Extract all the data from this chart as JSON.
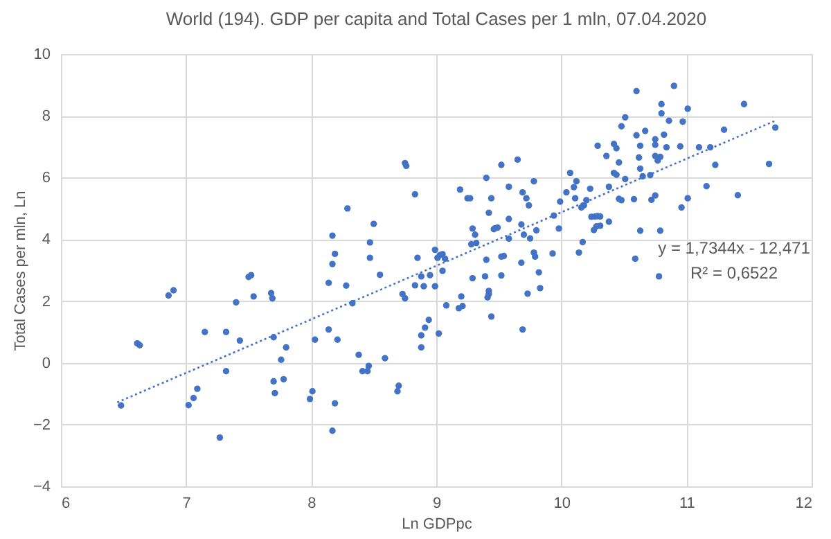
{
  "chart_data": {
    "type": "scatter",
    "title": "World (194). GDP per capita and Total Cases per 1 mln, 07.04.2020",
    "xlabel": "Ln GDPpc",
    "ylabel": "Total Cases per mln, Ln",
    "xlim": [
      6,
      12
    ],
    "xticks": [
      6,
      7,
      8,
      9,
      10,
      11,
      12
    ],
    "ylim": [
      -4,
      10
    ],
    "yticks": [
      -4,
      -2,
      0,
      2,
      4,
      6,
      8,
      10
    ],
    "grid": true,
    "annotations": [
      "y = 1,7344x - 12,471",
      "R² = 0,6522"
    ],
    "series": [
      {
        "color": "#4472c4",
        "marker": "circle",
        "x": [
          6.48,
          6.61,
          6.63,
          6.86,
          6.9,
          7.15,
          7.32,
          7.43,
          7.4,
          7.5,
          7.52,
          7.54,
          7.68,
          7.69,
          7.7,
          7.8,
          7.76,
          7.78,
          8.03,
          7.32,
          7.09,
          7.06,
          7.02,
          7.27,
          7.7,
          7.71,
          8.01,
          7.99,
          8.29,
          8.5,
          8.17,
          8.47,
          8.19,
          8.17,
          8.47,
          8.55,
          8.14,
          8.28,
          8.33,
          8.85,
          8.99,
          9.01,
          9.03,
          9.05,
          9.07,
          9.05,
          8.88,
          8.95,
          8.83,
          8.9,
          8.99,
          8.73,
          8.75,
          9.08,
          9.2,
          9.18,
          9.21,
          9.29,
          9.31,
          9.28,
          9.32,
          9.42,
          9.46,
          9.47,
          9.49,
          9.58,
          9.4,
          9.39,
          9.52,
          9.54,
          9.52,
          9.42,
          9.42,
          9.41,
          9.44,
          8.14,
          8.21,
          8.38,
          8.59,
          8.41,
          8.45,
          8.46,
          8.7,
          8.69,
          8.94,
          8.91,
          8.88,
          9.02,
          8.88,
          8.19,
          8.17,
          8.75,
          8.76,
          8.83,
          9.19,
          9.25,
          9.27,
          9.4,
          9.52,
          9.65,
          9.58,
          9.44,
          9.69,
          9.72,
          9.74,
          9.78,
          9.68,
          9.7,
          9.8,
          9.75,
          9.58,
          9.94,
          9.98,
          9.99,
          10.04,
          10.07,
          10.1,
          10.12,
          10.11,
          9.93,
          10.14,
          10.17,
          9.78,
          9.79,
          9.82,
          9.83,
          9.73,
          9.69,
          9.68,
          9.29,
          10.23,
          10.2,
          10.18,
          10.16,
          10.24,
          10.27,
          10.29,
          10.31,
          10.26,
          10.28,
          10.31,
          10.38,
          10.29,
          10.36,
          10.42,
          10.44,
          10.46,
          10.42,
          10.44,
          10.38,
          10.46,
          10.48,
          10.6,
          10.9,
          10.8,
          10.8,
          10.51,
          10.48,
          10.86,
          10.97,
          11.01,
          11.46,
          11.3,
          11.71,
          11.66,
          11.23,
          11.1,
          11.19,
          10.67,
          10.6,
          10.82,
          10.75,
          10.75,
          10.63,
          10.84,
          10.95,
          10.62,
          10.75,
          10.77,
          10.79,
          10.63,
          10.51,
          10.65,
          10.71,
          10.58,
          10.72,
          10.75,
          11.01,
          10.96,
          11.16,
          11.41,
          10.63,
          10.79,
          10.59,
          10.78
        ],
        "values": [
          -1.38,
          0.63,
          0.57,
          2.18,
          2.35,
          1.0,
          1.0,
          0.72,
          1.96,
          2.78,
          2.84,
          2.15,
          2.26,
          2.09,
          0.83,
          0.5,
          0.1,
          -0.53,
          0.75,
          -0.27,
          -0.84,
          -1.14,
          -1.37,
          -2.42,
          -0.6,
          -0.98,
          -0.92,
          -1.17,
          5.0,
          4.5,
          4.12,
          3.9,
          3.53,
          3.2,
          3.4,
          2.85,
          2.59,
          2.5,
          1.93,
          3.4,
          3.66,
          3.4,
          3.49,
          3.52,
          3.37,
          2.98,
          2.8,
          2.84,
          2.51,
          2.48,
          2.48,
          2.23,
          2.09,
          1.86,
          2.15,
          1.77,
          1.84,
          4.35,
          4.15,
          3.84,
          3.88,
          4.86,
          4.33,
          4.36,
          4.38,
          4.66,
          3.34,
          2.8,
          3.44,
          3.46,
          2.83,
          2.33,
          2.23,
          2.12,
          1.5,
          1.08,
          0.75,
          0.26,
          0.15,
          -0.27,
          -0.27,
          -0.1,
          -0.74,
          -0.92,
          1.39,
          1.14,
          0.89,
          0.95,
          0.5,
          -1.31,
          -2.2,
          6.47,
          6.38,
          5.46,
          5.61,
          5.33,
          5.33,
          5.99,
          6.41,
          6.58,
          5.7,
          5.33,
          5.52,
          5.33,
          5.1,
          5.88,
          4.48,
          4.15,
          4.29,
          4.03,
          4.02,
          4.77,
          4.35,
          5.22,
          5.52,
          6.15,
          5.69,
          5.88,
          5.33,
          3.54,
          3.57,
          3.91,
          3.57,
          3.44,
          2.93,
          2.42,
          2.24,
          1.08,
          3.24,
          2.74,
          5.64,
          5.27,
          5.1,
          5.03,
          4.73,
          4.74,
          4.75,
          4.74,
          4.3,
          4.42,
          4.44,
          4.57,
          7.03,
          6.7,
          7.09,
          6.95,
          6.49,
          6.15,
          6.09,
          5.7,
          5.31,
          5.27,
          8.8,
          8.97,
          8.38,
          8.08,
          7.95,
          7.66,
          7.84,
          7.81,
          8.23,
          8.38,
          7.55,
          7.62,
          6.44,
          6.41,
          6.98,
          6.98,
          7.51,
          7.37,
          7.39,
          7.24,
          7.06,
          7.03,
          6.98,
          7.01,
          6.65,
          6.7,
          6.55,
          6.67,
          6.29,
          5.95,
          6.04,
          6.08,
          5.3,
          5.28,
          5.42,
          5.33,
          5.03,
          5.72,
          5.43,
          4.28,
          4.28,
          3.37,
          2.8
        ]
      },
      {
        "type": "line",
        "color": "#4472c4",
        "line_style": "dotted",
        "marker": "none",
        "x": [
          6.45,
          11.71
        ],
        "values": [
          -1.28,
          7.84
        ]
      }
    ]
  }
}
